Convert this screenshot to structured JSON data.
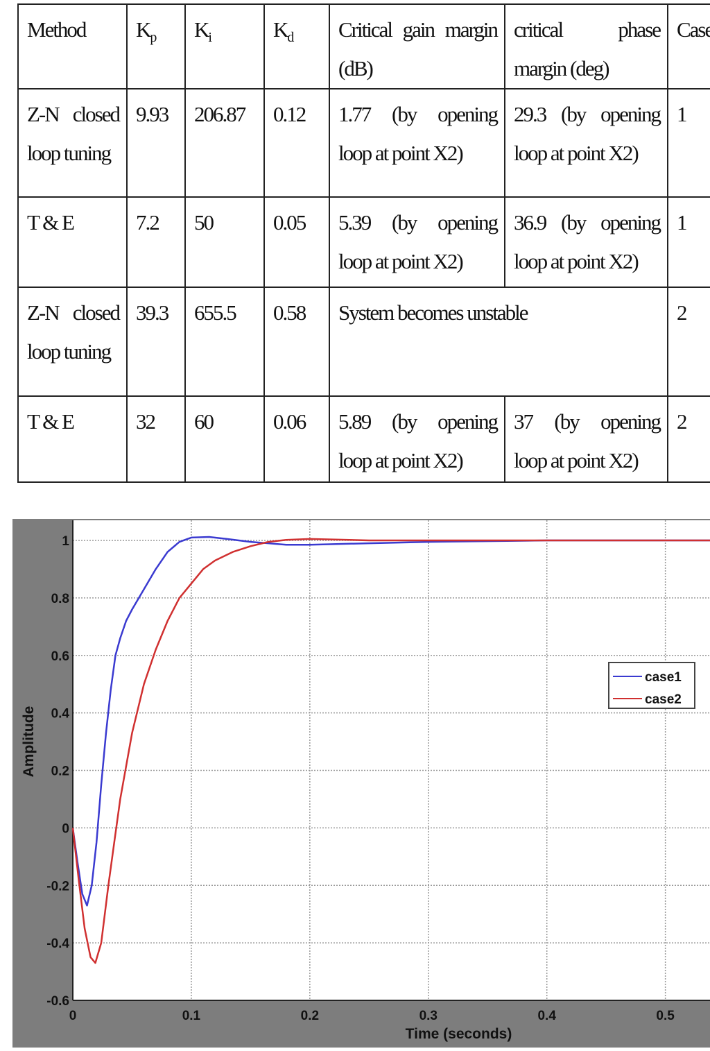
{
  "table": {
    "headers": {
      "method": "Method",
      "kp": "K",
      "kp_sub": "p",
      "ki": "K",
      "ki_sub": "i",
      "kd": "K",
      "kd_sub": "d",
      "gain_margin": "Critical gain margin (dB)",
      "phase_margin": "critical phase margin (deg)",
      "case": "Case"
    },
    "rows": [
      {
        "method": "Z-N closed loop tuning",
        "kp": "9.93",
        "ki": "206.87",
        "kd": "0.12",
        "gain_margin": "1.77 (by opening loop at point X2)",
        "phase_margin": "29.3 (by opening loop at point X2)",
        "case": "1"
      },
      {
        "method": "T & E",
        "kp": "7.2",
        "ki": "50",
        "kd": "0.05",
        "gain_margin": "5.39 (by opening loop at point X2)",
        "phase_margin": "36.9 (by opening loop at point X2)",
        "case": "1"
      },
      {
        "method": "Z-N closed loop tuning",
        "kp": "39.3",
        "ki": "655.5",
        "kd": "0.58",
        "merged": "System becomes unstable",
        "case": "2"
      },
      {
        "method": "T & E",
        "kp": "32",
        "ki": "60",
        "kd": "0.06",
        "gain_margin": "5.89 (by opening loop at point X2)",
        "phase_margin": "37 (by opening loop at point X2)",
        "case": "2"
      }
    ]
  },
  "chart_data": {
    "type": "line",
    "xlabel": "Time (seconds)",
    "ylabel": "Amplitude",
    "xlim": [
      0,
      0.54
    ],
    "ylim": [
      -0.6,
      1.07
    ],
    "xticks": [
      "0",
      "0.1",
      "0.2",
      "0.3",
      "0.4",
      "0.5"
    ],
    "yticks": [
      "-0.6",
      "-0.4",
      "-0.2",
      "0",
      "0.2",
      "0.4",
      "0.6",
      "0.8",
      "1"
    ],
    "grid": true,
    "legend_position": "right",
    "series": [
      {
        "name": "case1",
        "color": "#3a3ad0",
        "x": [
          0,
          0.004,
          0.008,
          0.012,
          0.016,
          0.02,
          0.024,
          0.028,
          0.032,
          0.036,
          0.04,
          0.045,
          0.05,
          0.06,
          0.07,
          0.08,
          0.09,
          0.1,
          0.115,
          0.13,
          0.15,
          0.18,
          0.2,
          0.25,
          0.3,
          0.4,
          0.54
        ],
        "y": [
          0,
          -0.12,
          -0.23,
          -0.27,
          -0.2,
          -0.05,
          0.15,
          0.33,
          0.48,
          0.6,
          0.66,
          0.72,
          0.76,
          0.83,
          0.9,
          0.96,
          0.995,
          1.01,
          1.012,
          1.005,
          0.995,
          0.985,
          0.985,
          0.99,
          0.995,
          1.0,
          1.0
        ]
      },
      {
        "name": "case2",
        "color": "#d03030",
        "x": [
          0,
          0.005,
          0.01,
          0.015,
          0.019,
          0.024,
          0.03,
          0.035,
          0.04,
          0.05,
          0.06,
          0.07,
          0.08,
          0.09,
          0.1,
          0.11,
          0.12,
          0.135,
          0.15,
          0.165,
          0.18,
          0.2,
          0.25,
          0.3,
          0.4,
          0.54
        ],
        "y": [
          0,
          -0.18,
          -0.35,
          -0.45,
          -0.47,
          -0.4,
          -0.2,
          -0.05,
          0.1,
          0.33,
          0.5,
          0.62,
          0.72,
          0.8,
          0.85,
          0.9,
          0.93,
          0.96,
          0.98,
          0.995,
          1.002,
          1.005,
          1.0,
          1.0,
          1.0,
          1.0
        ]
      }
    ]
  }
}
